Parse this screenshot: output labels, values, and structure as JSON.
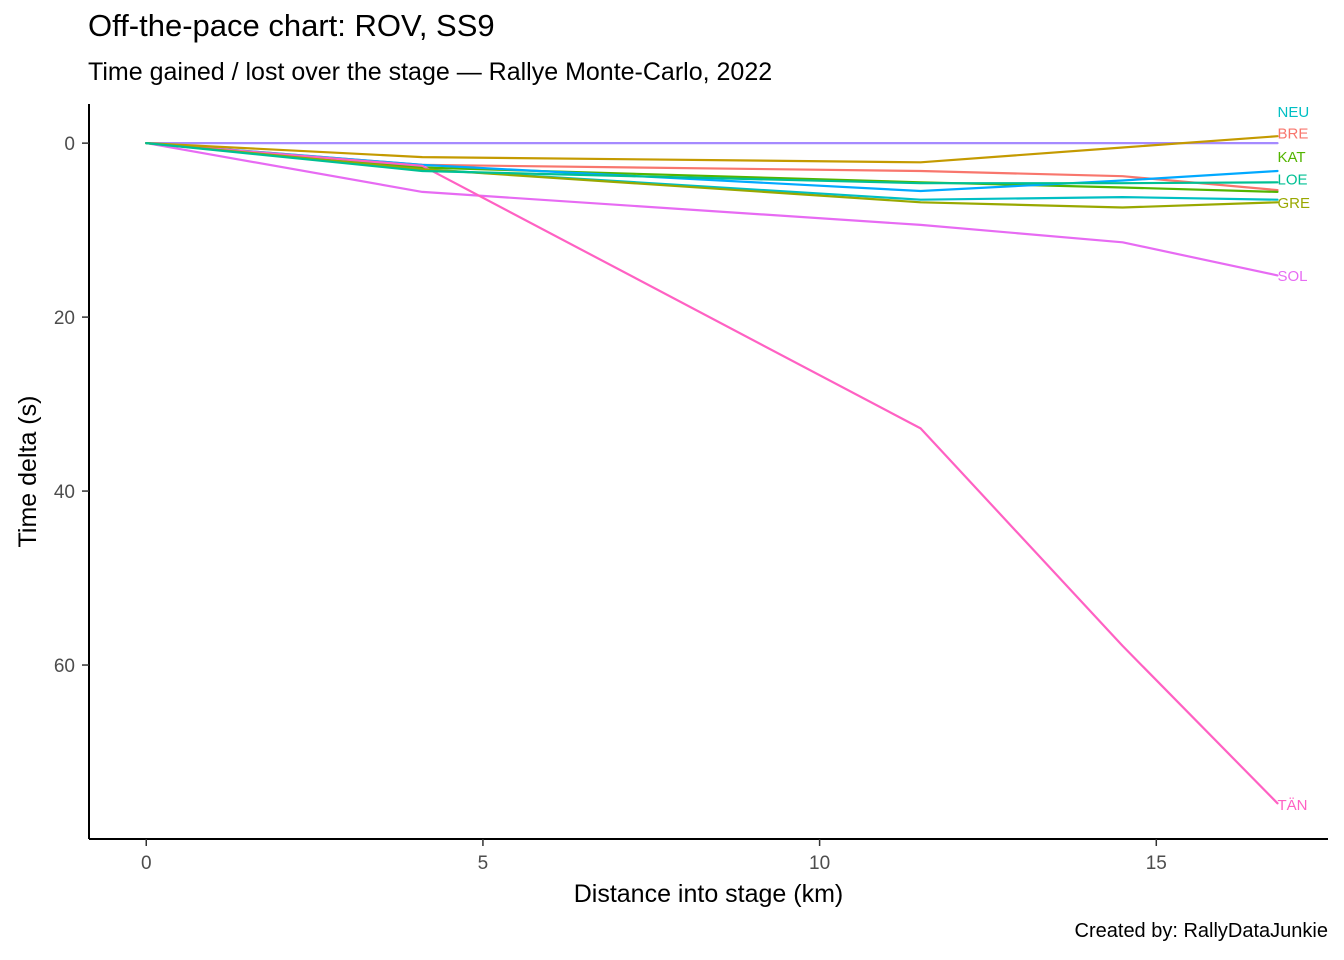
{
  "chart_data": {
    "type": "line",
    "title": "Off-the-pace chart: ROV, SS9",
    "subtitle": "Time gained / lost over the stage — Rallye Monte-Carlo, 2022",
    "caption": "Created by: RallyDataJunkie",
    "xlabel": "Distance into stage (km)",
    "ylabel": "Time delta (s)",
    "xlim": [
      -0.85,
      17.55
    ],
    "ylim": [
      -4.5,
      80
    ],
    "y_reversed": true,
    "grid": false,
    "legend": "none (series labelled at line ends)",
    "x_ticks": [
      0,
      5,
      10,
      15
    ],
    "y_ticks": [
      0,
      20,
      40,
      60
    ],
    "series": [
      {
        "name": "NEU",
        "color": "#00BFC4",
        "x": [
          0,
          4.1,
          11.5,
          14.5,
          16.8
        ],
        "y": [
          0,
          3.0,
          6.5,
          6.2,
          6.5
        ]
      },
      {
        "name": "BRE",
        "color": "#F8766D",
        "x": [
          0,
          4.1,
          11.5,
          14.5,
          16.8
        ],
        "y": [
          0,
          2.5,
          3.2,
          3.8,
          5.4
        ]
      },
      {
        "name": "KAT",
        "color": "#53B400",
        "x": [
          0,
          4.1,
          11.5,
          14.5,
          16.8
        ],
        "y": [
          0,
          2.8,
          4.5,
          5.1,
          5.6
        ]
      },
      {
        "name": "LOE",
        "color": "#00A9FF",
        "x": [
          0,
          4.1,
          11.5,
          14.5,
          16.8
        ],
        "y": [
          0,
          2.5,
          5.5,
          4.3,
          3.2
        ]
      },
      {
        "name": "GRE",
        "color": "#A58AFF",
        "x": [
          0,
          4.1,
          11.5,
          14.5,
          16.8
        ],
        "y": [
          0,
          0,
          0,
          0,
          0
        ]
      },
      {
        "name": "SOL",
        "color": "#E76BF3",
        "x": [
          0,
          4.1,
          11.5,
          14.5,
          16.8
        ],
        "y": [
          0,
          5.6,
          9.4,
          11.4,
          15.2
        ]
      },
      {
        "name": "TÄN",
        "color": "#FF61C3",
        "x": [
          0,
          4.1,
          11.5,
          14.5,
          16.8
        ],
        "y": [
          0,
          2.6,
          32.8,
          57.8,
          75.9
        ]
      },
      {
        "name": "",
        "color": "#C49A00",
        "x": [
          0,
          4.1,
          11.5,
          14.5,
          16.8
        ],
        "y": [
          0,
          1.6,
          2.2,
          0.5,
          -0.8
        ]
      },
      {
        "name": "",
        "color": "#99A800",
        "x": [
          0,
          4.1,
          11.5,
          14.5,
          16.8
        ],
        "y": [
          0,
          3.0,
          6.8,
          7.4,
          6.8
        ]
      },
      {
        "name": "",
        "color": "#00C094",
        "x": [
          0,
          4.1,
          11.5,
          14.5,
          16.8
        ],
        "y": [
          0,
          3.2,
          4.6,
          4.6,
          4.5
        ]
      }
    ],
    "end_labels": [
      {
        "text": "NEU",
        "color": "#00BFC4",
        "y": -3.6
      },
      {
        "text": "BRE",
        "color": "#F8766D",
        "y": -1.1
      },
      {
        "text": "KAT",
        "color": "#53B400",
        "y": 1.6
      },
      {
        "text": "LOE",
        "color": "#00C094",
        "y": 4.2
      },
      {
        "text": "GRE",
        "color": "#99A800",
        "y": 6.9
      },
      {
        "text": "SOL",
        "color": "#E76BF3",
        "y": 15.3
      },
      {
        "text": "TÄN",
        "color": "#FF61C3",
        "y": 76.1
      }
    ]
  }
}
